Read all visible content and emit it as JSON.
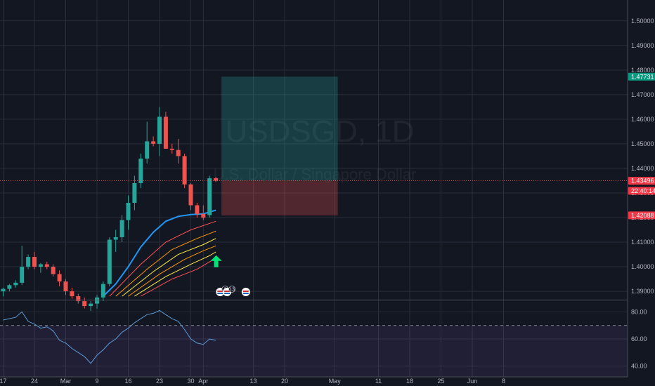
{
  "chart_data": {
    "type": "candlestick",
    "watermark": {
      "symbol": "USDSGD, 1D",
      "description": "U.S. Dollar / Singapore Dollar"
    },
    "price_axis": {
      "ylim": [
        1.3866,
        1.5085
      ],
      "ticks": [
        "1.50000",
        "1.49000",
        "1.48000",
        "1.47000",
        "1.46000",
        "1.45000",
        "1.44000",
        "1.43000",
        "1.42000",
        "1.41000",
        "1.40000",
        "1.39000"
      ]
    },
    "time_axis": {
      "labels": [
        {
          "label": "17",
          "index": 0
        },
        {
          "label": "24",
          "index": 5
        },
        {
          "label": "Mar",
          "index": 10
        },
        {
          "label": "9",
          "index": 15
        },
        {
          "label": "16",
          "index": 20
        },
        {
          "label": "23",
          "index": 25
        },
        {
          "label": "30",
          "index": 30
        },
        {
          "label": "Apr",
          "index": 32
        },
        {
          "label": "13",
          "index": 40
        },
        {
          "label": "20",
          "index": 45
        },
        {
          "label": "May",
          "index": 53
        },
        {
          "label": "11",
          "index": 60
        },
        {
          "label": "18",
          "index": 65
        },
        {
          "label": "25",
          "index": 70
        },
        {
          "label": "Jun",
          "index": 75
        },
        {
          "label": "8",
          "index": 80
        }
      ]
    },
    "candles": [
      {
        "o": 1.39,
        "h": 1.3915,
        "l": 1.388,
        "c": 1.391
      },
      {
        "o": 1.391,
        "h": 1.393,
        "l": 1.39,
        "c": 1.3925
      },
      {
        "o": 1.3925,
        "h": 1.3945,
        "l": 1.3915,
        "c": 1.3935
      },
      {
        "o": 1.3935,
        "h": 1.4085,
        "l": 1.3925,
        "c": 1.4
      },
      {
        "o": 1.4,
        "h": 1.405,
        "l": 1.399,
        "c": 1.404
      },
      {
        "o": 1.404,
        "h": 1.406,
        "l": 1.399,
        "c": 1.4
      },
      {
        "o": 1.4,
        "h": 1.4015,
        "l": 1.3975,
        "c": 1.401
      },
      {
        "o": 1.401,
        "h": 1.402,
        "l": 1.399,
        "c": 1.4
      },
      {
        "o": 1.4,
        "h": 1.401,
        "l": 1.396,
        "c": 1.397
      },
      {
        "o": 1.397,
        "h": 1.3985,
        "l": 1.392,
        "c": 1.394
      },
      {
        "o": 1.394,
        "h": 1.395,
        "l": 1.3885,
        "c": 1.39
      },
      {
        "o": 1.39,
        "h": 1.3915,
        "l": 1.387,
        "c": 1.388
      },
      {
        "o": 1.388,
        "h": 1.389,
        "l": 1.385,
        "c": 1.386
      },
      {
        "o": 1.386,
        "h": 1.3875,
        "l": 1.383,
        "c": 1.384
      },
      {
        "o": 1.384,
        "h": 1.386,
        "l": 1.382,
        "c": 1.385
      },
      {
        "o": 1.385,
        "h": 1.3885,
        "l": 1.383,
        "c": 1.3875
      },
      {
        "o": 1.3875,
        "h": 1.394,
        "l": 1.386,
        "c": 1.393
      },
      {
        "o": 1.393,
        "h": 1.412,
        "l": 1.392,
        "c": 1.411
      },
      {
        "o": 1.411,
        "h": 1.415,
        "l": 1.406,
        "c": 1.412
      },
      {
        "o": 1.412,
        "h": 1.421,
        "l": 1.41,
        "c": 1.419
      },
      {
        "o": 1.419,
        "h": 1.429,
        "l": 1.415,
        "c": 1.426
      },
      {
        "o": 1.426,
        "h": 1.437,
        "l": 1.423,
        "c": 1.434
      },
      {
        "o": 1.434,
        "h": 1.446,
        "l": 1.432,
        "c": 1.444
      },
      {
        "o": 1.444,
        "h": 1.459,
        "l": 1.442,
        "c": 1.451
      },
      {
        "o": 1.451,
        "h": 1.453,
        "l": 1.449,
        "c": 1.45
      },
      {
        "o": 1.45,
        "h": 1.465,
        "l": 1.445,
        "c": 1.461
      },
      {
        "o": 1.461,
        "h": 1.463,
        "l": 1.448,
        "c": 1.448
      },
      {
        "o": 1.448,
        "h": 1.45,
        "l": 1.446,
        "c": 1.4475
      },
      {
        "o": 1.4475,
        "h": 1.452,
        "l": 1.442,
        "c": 1.445
      },
      {
        "o": 1.445,
        "h": 1.446,
        "l": 1.432,
        "c": 1.4335
      },
      {
        "o": 1.4335,
        "h": 1.434,
        "l": 1.423,
        "c": 1.425
      },
      {
        "o": 1.425,
        "h": 1.426,
        "l": 1.42,
        "c": 1.4215
      },
      {
        "o": 1.4215,
        "h": 1.425,
        "l": 1.419,
        "c": 1.42
      },
      {
        "o": 1.421,
        "h": 1.437,
        "l": 1.42,
        "c": 1.436
      },
      {
        "o": 1.436,
        "h": 1.4365,
        "l": 1.4345,
        "c": 1.435
      }
    ],
    "ema_blue": [
      {
        "i": 16,
        "v": 1.388
      },
      {
        "i": 18,
        "v": 1.393
      },
      {
        "i": 20,
        "v": 1.4
      },
      {
        "i": 22,
        "v": 1.408
      },
      {
        "i": 24,
        "v": 1.414
      },
      {
        "i": 26,
        "v": 1.4185
      },
      {
        "i": 28,
        "v": 1.4205
      },
      {
        "i": 30,
        "v": 1.4212
      },
      {
        "i": 32,
        "v": 1.4215
      },
      {
        "i": 34,
        "v": 1.423
      }
    ],
    "ribbon": [
      {
        "color": "#ff5252",
        "points": [
          [
            17,
            1.388
          ],
          [
            22,
            1.401
          ],
          [
            26,
            1.41
          ],
          [
            30,
            1.415
          ],
          [
            34,
            1.4185
          ]
        ]
      },
      {
        "color": "#ff9800",
        "points": [
          [
            18,
            1.388
          ],
          [
            23,
            1.399
          ],
          [
            27,
            1.407
          ],
          [
            31,
            1.4115
          ],
          [
            34,
            1.4145
          ]
        ]
      },
      {
        "color": "#ffeb3b",
        "points": [
          [
            19,
            1.388
          ],
          [
            24,
            1.398
          ],
          [
            28,
            1.405
          ],
          [
            32,
            1.409
          ],
          [
            34,
            1.4115
          ]
        ]
      },
      {
        "color": "#ff9800",
        "points": [
          [
            20,
            1.388
          ],
          [
            25,
            1.397
          ],
          [
            29,
            1.403
          ],
          [
            32,
            1.4065
          ],
          [
            34,
            1.4085
          ]
        ]
      },
      {
        "color": "#ffeb3b",
        "points": [
          [
            21,
            1.388
          ],
          [
            26,
            1.396
          ],
          [
            30,
            1.401
          ],
          [
            33,
            1.4045
          ],
          [
            34,
            1.406
          ]
        ]
      },
      {
        "color": "#ff5252",
        "points": [
          [
            22,
            1.388
          ],
          [
            27,
            1.395
          ],
          [
            31,
            1.399
          ],
          [
            34,
            1.4035
          ]
        ]
      }
    ],
    "position": {
      "type": "long",
      "entry": 1.435,
      "target": 1.47731,
      "stop": 1.42088,
      "start_index": 34,
      "end_index": 53.5,
      "profit_color": "#26a69a",
      "loss_color": "#ef5350"
    },
    "price_tags": [
      {
        "label": "1.47731",
        "value": 1.47731,
        "color": "#089981"
      },
      {
        "label": "1.43500",
        "value": 1.435,
        "color": "#363a45"
      },
      {
        "label": "1.43496",
        "value": 1.43496,
        "color": "#f23645"
      },
      {
        "label": "22:40:14",
        "value": 1.4309,
        "color": "#f23645"
      },
      {
        "label": "1.42088",
        "value": 1.42088,
        "color": "#f23645"
      }
    ],
    "crosshair_price": 1.435,
    "arrow": {
      "index": 34,
      "value": 1.4015,
      "color": "#00e676"
    },
    "events": [
      {
        "index": 34.7,
        "badge": "3"
      },
      {
        "index": 35.8,
        "badge": "13"
      },
      {
        "index": 38.8,
        "badge": ""
      }
    ],
    "rsi": {
      "ylim": [
        32,
        88
      ],
      "ticks": [
        "80.00",
        "60.00",
        "40.00"
      ],
      "bands": [
        70,
        30
      ],
      "fill_color": "#7e57c2",
      "line_color": "#5b9bd5",
      "values": [
        {
          "i": 0,
          "v": 74
        },
        {
          "i": 2,
          "v": 76
        },
        {
          "i": 3,
          "v": 80
        },
        {
          "i": 4,
          "v": 73
        },
        {
          "i": 5,
          "v": 71
        },
        {
          "i": 6,
          "v": 68
        },
        {
          "i": 7,
          "v": 69
        },
        {
          "i": 8,
          "v": 66
        },
        {
          "i": 9,
          "v": 59
        },
        {
          "i": 10,
          "v": 57
        },
        {
          "i": 11,
          "v": 53
        },
        {
          "i": 12,
          "v": 50
        },
        {
          "i": 13,
          "v": 47
        },
        {
          "i": 14,
          "v": 42
        },
        {
          "i": 15,
          "v": 48
        },
        {
          "i": 16,
          "v": 52
        },
        {
          "i": 17,
          "v": 57
        },
        {
          "i": 18,
          "v": 60
        },
        {
          "i": 19,
          "v": 65
        },
        {
          "i": 20,
          "v": 68
        },
        {
          "i": 21,
          "v": 72
        },
        {
          "i": 22,
          "v": 75
        },
        {
          "i": 23,
          "v": 78
        },
        {
          "i": 24,
          "v": 79
        },
        {
          "i": 25,
          "v": 81
        },
        {
          "i": 26,
          "v": 78
        },
        {
          "i": 27,
          "v": 75
        },
        {
          "i": 28,
          "v": 73
        },
        {
          "i": 29,
          "v": 67
        },
        {
          "i": 30,
          "v": 60
        },
        {
          "i": 31,
          "v": 57
        },
        {
          "i": 32,
          "v": 56
        },
        {
          "i": 33,
          "v": 60
        },
        {
          "i": 34,
          "v": 59
        }
      ]
    }
  }
}
